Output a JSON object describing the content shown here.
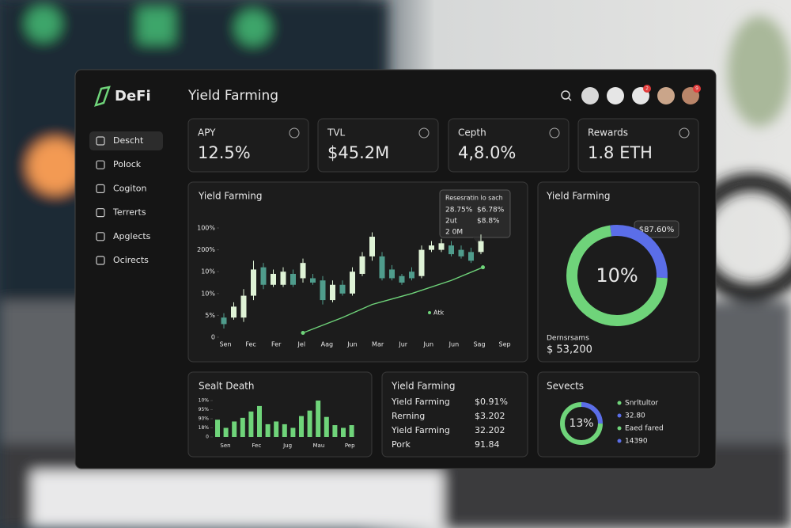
{
  "sidebar": {
    "logo": "DeFi",
    "nav": [
      "Descht",
      "Polock",
      "Cogiton",
      "Terrerts",
      "Apglects",
      "Ocirects"
    ]
  },
  "header": {
    "title": "Yield Farming",
    "badges": [
      "2",
      "9"
    ]
  },
  "stats": [
    {
      "label": "APY",
      "value": "12.5%"
    },
    {
      "label": "TVL",
      "value": "$45.2M"
    },
    {
      "label": "Cepth",
      "value": "4,8.0%"
    },
    {
      "label": "Rewards",
      "value": "1.8 ETH"
    }
  ],
  "main_chart": {
    "type": "candlestick",
    "title": "Yield Farming",
    "ylim": [
      0,
      5
    ],
    "yticks": [
      {
        "value": 0,
        "label": "0"
      },
      {
        "value": 1,
        "label": "5%"
      },
      {
        "value": 2,
        "label": "10%"
      },
      {
        "value": 3,
        "label": "10%"
      },
      {
        "value": 4,
        "label": "200%"
      },
      {
        "value": 5,
        "label": "100%"
      }
    ],
    "categories": [
      "Sen",
      "Fec",
      "Fer",
      "Jel",
      "Aag",
      "Jun",
      "Mar",
      "Jur",
      "Jun",
      "Jun",
      "Sag",
      "Sep"
    ],
    "candles": [
      {
        "open": 0.9,
        "high": 1.1,
        "low": 0.4,
        "close": 0.6
      },
      {
        "open": 0.9,
        "high": 1.6,
        "low": 0.8,
        "close": 1.4
      },
      {
        "open": 0.9,
        "high": 2.2,
        "low": 0.7,
        "close": 1.9
      },
      {
        "open": 1.9,
        "high": 3.5,
        "low": 1.7,
        "close": 3.1
      },
      {
        "open": 3.2,
        "high": 3.4,
        "low": 2.2,
        "close": 2.4
      },
      {
        "open": 2.4,
        "high": 3.1,
        "low": 2.3,
        "close": 2.9
      },
      {
        "open": 2.4,
        "high": 3.2,
        "low": 2.3,
        "close": 3.0
      },
      {
        "open": 2.9,
        "high": 3.1,
        "low": 2.3,
        "close": 2.4
      },
      {
        "open": 2.7,
        "high": 3.6,
        "low": 2.5,
        "close": 3.4
      },
      {
        "open": 2.7,
        "high": 2.9,
        "low": 2.4,
        "close": 2.5
      },
      {
        "open": 2.6,
        "high": 2.8,
        "low": 1.5,
        "close": 1.7
      },
      {
        "open": 1.7,
        "high": 2.6,
        "low": 1.6,
        "close": 2.4
      },
      {
        "open": 2.4,
        "high": 2.6,
        "low": 1.9,
        "close": 2.0
      },
      {
        "open": 2.0,
        "high": 3.2,
        "low": 1.9,
        "close": 3.0
      },
      {
        "open": 2.9,
        "high": 3.9,
        "low": 2.8,
        "close": 3.7
      },
      {
        "open": 3.7,
        "high": 4.8,
        "low": 3.5,
        "close": 4.6
      },
      {
        "open": 3.7,
        "high": 3.9,
        "low": 2.6,
        "close": 2.7
      },
      {
        "open": 3.1,
        "high": 3.3,
        "low": 2.6,
        "close": 2.7
      },
      {
        "open": 2.8,
        "high": 2.9,
        "low": 2.4,
        "close": 2.5
      },
      {
        "open": 3.0,
        "high": 3.2,
        "low": 2.6,
        "close": 2.7
      },
      {
        "open": 2.8,
        "high": 4.2,
        "low": 2.7,
        "close": 4.0
      },
      {
        "open": 4.0,
        "high": 4.4,
        "low": 3.9,
        "close": 4.2
      },
      {
        "open": 4.0,
        "high": 4.5,
        "low": 3.9,
        "close": 4.3
      },
      {
        "open": 4.2,
        "high": 4.4,
        "low": 3.7,
        "close": 3.8
      },
      {
        "open": 4.0,
        "high": 4.2,
        "low": 3.6,
        "close": 3.7
      },
      {
        "open": 3.9,
        "high": 4.1,
        "low": 3.4,
        "close": 3.5
      },
      {
        "open": 3.9,
        "high": 4.7,
        "low": 3.8,
        "close": 4.4
      }
    ],
    "up_color": "#dff3d6",
    "down_color": "#4f9c8c",
    "trend": {
      "name": "Atk",
      "color": "#6fd47a",
      "x": [
        8,
        12,
        15,
        19,
        23,
        26.2
      ],
      "values": [
        0.2,
        0.9,
        1.5,
        2.0,
        2.6,
        3.2
      ]
    },
    "tooltip": {
      "title": "Resesratin lo sach",
      "rows": [
        [
          "28.75%",
          "$6.78%"
        ],
        [
          "2ut",
          "$8.8%"
        ],
        [
          "2 0M"
        ]
      ]
    }
  },
  "ring_card": {
    "title": "Yield Farming",
    "center": "10%",
    "tooltip": "$87.60%",
    "values": [
      28,
      72
    ],
    "colors": [
      "#5b6ee8",
      "#6fd47a"
    ],
    "label": "Dernsrsams",
    "amount": "$ 53,200"
  },
  "bar_card": {
    "type": "bar",
    "title": "Sealt Death",
    "color": "#6fd47a",
    "ylim": [
      0,
      4
    ],
    "yticks": [
      {
        "value": 0,
        "label": "0"
      },
      {
        "value": 1,
        "label": "18%"
      },
      {
        "value": 2,
        "label": "90%"
      },
      {
        "value": 3,
        "label": "95%"
      },
      {
        "value": 4,
        "label": "10%"
      }
    ],
    "categories": [
      "Sen",
      "Fec",
      "Jug",
      "Mau",
      "Pep"
    ],
    "values": [
      1.9,
      1.0,
      1.7,
      2.1,
      2.8,
      3.4,
      1.4,
      1.7,
      1.4,
      1.0,
      2.3,
      2.9,
      4.0,
      2.2,
      1.3,
      1.0,
      1.3
    ]
  },
  "list_card": {
    "title": "Yield Farming",
    "rows": [
      [
        "Yield Farming",
        "$0.91%"
      ],
      [
        "Rerning",
        "$3.202"
      ],
      [
        "Yield Farming",
        "32.202"
      ],
      [
        "Pork",
        "91.84"
      ]
    ]
  },
  "small_ring": {
    "title": "Sevects",
    "center": "13%",
    "values": [
      25,
      75
    ],
    "colors": [
      "#5b6ee8",
      "#6fd47a"
    ],
    "legend": [
      {
        "label": "Snrltultor",
        "color": "#6fd47a"
      },
      {
        "label": "32.80",
        "color": "#5b6ee8"
      },
      {
        "label": "Eaed fared",
        "color": "#6fd47a"
      },
      {
        "label": "14390",
        "color": "#5b6ee8"
      }
    ]
  }
}
